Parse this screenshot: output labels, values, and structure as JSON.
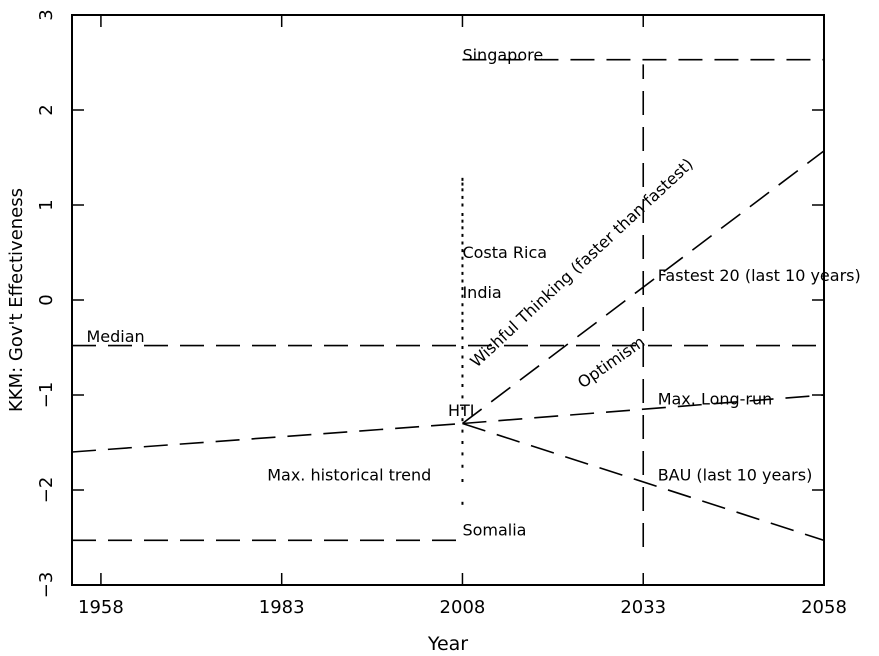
{
  "chart_data": {
    "type": "line",
    "xlabel": "Year",
    "ylabel": "KKM:  Gov't Effectiveness",
    "xlim": [
      1954,
      2058
    ],
    "ylim": [
      -3,
      3
    ],
    "x_ticks": [
      1958,
      1983,
      2008,
      2033,
      2058
    ],
    "x_tick_labels": [
      "1958",
      "1983",
      "2008",
      "2033",
      "2058"
    ],
    "y_ticks": [
      -3,
      -2,
      -1,
      0,
      1,
      2,
      3
    ],
    "y_tick_labels": [
      "−3",
      "−2",
      "−1",
      "0",
      "1",
      "2",
      "3"
    ],
    "series": [
      {
        "x": [
          1954,
          2008
        ],
        "y": [
          -1.6,
          -1.3
        ],
        "dash": "long"
      },
      {
        "x": [
          2008,
          2058
        ],
        "y": [
          -1.3,
          -1.0
        ],
        "dash": "long"
      },
      {
        "x": [
          2008,
          2058
        ],
        "y": [
          -1.3,
          -2.53
        ],
        "dash": "long"
      },
      {
        "x": [
          2008,
          2058
        ],
        "y": [
          -1.3,
          1.57
        ],
        "dash": "long"
      },
      {
        "x": [
          1954,
          2058
        ],
        "y": [
          -0.48,
          -0.48
        ],
        "dash": "long"
      },
      {
        "x": [
          2008,
          2058
        ],
        "y": [
          2.53,
          2.53
        ],
        "dash": "long"
      },
      {
        "x": [
          1954,
          2008
        ],
        "y": [
          -2.53,
          -2.53
        ],
        "dash": "long"
      },
      {
        "x": [
          2033,
          2033
        ],
        "y": [
          -2.6,
          2.48
        ],
        "dash": "long"
      }
    ],
    "scatter_2008": {
      "x": 2008,
      "y": [
        1.27,
        1.22,
        1.16,
        1.08,
        1.0,
        0.9,
        0.83,
        0.76,
        0.68,
        0.6,
        0.52,
        0.44,
        0.36,
        0.28,
        0.2,
        0.12,
        0.04,
        -0.05,
        -0.14,
        -0.22,
        -0.3,
        -0.4,
        -0.5,
        -0.6,
        -0.7,
        -0.8,
        -0.9,
        -1.02,
        -1.14,
        -1.26,
        -1.38,
        -1.5,
        -1.62,
        -1.75,
        -1.9,
        -2.14
      ]
    },
    "annotations": [
      {
        "text": "Singapore",
        "x": 2008,
        "y": 2.52
      },
      {
        "text": "Costa Rica",
        "x": 2008,
        "y": 0.44
      },
      {
        "text": "India",
        "x": 2008,
        "y": 0.02
      },
      {
        "text": "Median",
        "x": 1956,
        "y": -0.44
      },
      {
        "text": "HTI",
        "x": 2006,
        "y": -1.22
      },
      {
        "text": "Max. historical trend",
        "x": 1981,
        "y": -1.9
      },
      {
        "text": "Somalia",
        "x": 2008,
        "y": -2.48
      },
      {
        "text": "Fastest 20 (last 10 years)",
        "x": 2035,
        "y": 0.2
      },
      {
        "text": "Max. Long-run",
        "x": 2035,
        "y": -1.1
      },
      {
        "text": "BAU (last 10 years)",
        "x": 2035,
        "y": -1.9
      },
      {
        "text": "Optimism",
        "x": 2029,
        "y": -0.7,
        "rotate": -35
      },
      {
        "text": "Wishful Thinking (faster than fastest)",
        "x": 2025,
        "y": 0.35,
        "rotate": -43
      }
    ]
  }
}
